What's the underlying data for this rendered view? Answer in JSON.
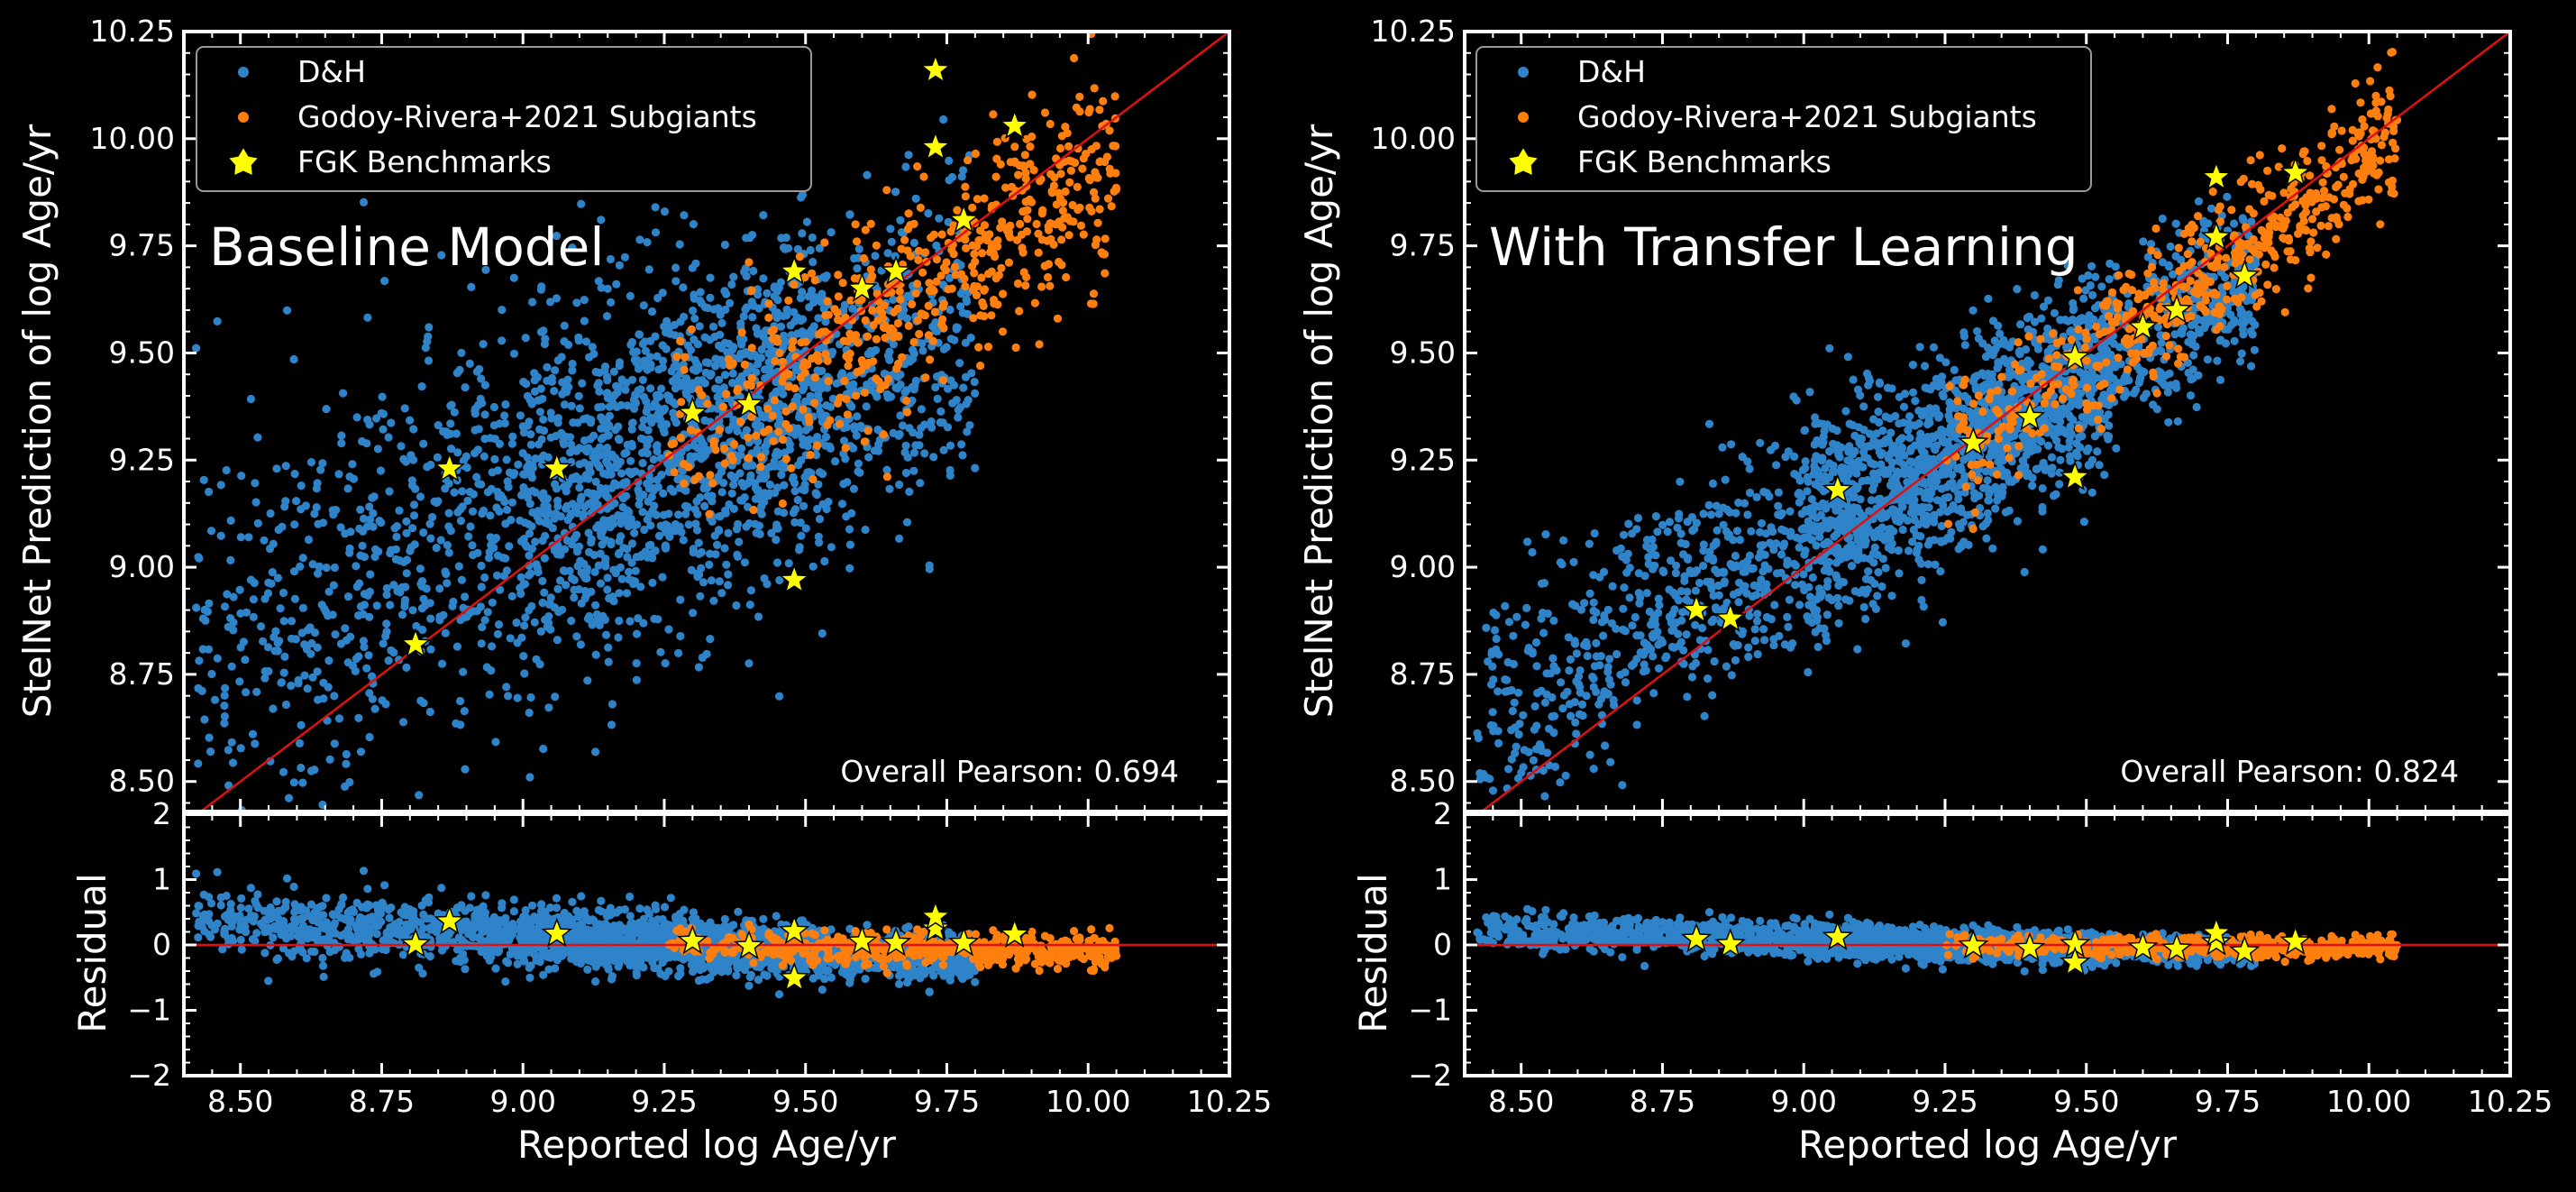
{
  "colors": {
    "background": "#000000",
    "axes": "#ffffff",
    "dh": "#2f83c8",
    "godoy": "#ff7f0e",
    "benchmark_fill": "#ffff00",
    "benchmark_edge": "#000000",
    "one_to_one": "#e01010",
    "legend_edge": "#9a9a9a"
  },
  "chart_data": [
    {
      "type": "scatter",
      "title": "Baseline Model",
      "xlabel": "Reported log Age/yr",
      "ylabel": "StelNet Prediction of log Age/yr",
      "residual_ylabel": "Residual",
      "xlim": [
        8.4,
        10.25
      ],
      "ylim": [
        8.43,
        10.25
      ],
      "residual_ylim": [
        -2,
        2
      ],
      "xticks": [
        "8.50",
        "8.75",
        "9.00",
        "9.25",
        "9.50",
        "9.75",
        "10.00",
        "10.25"
      ],
      "yticks": [
        "8.50",
        "8.75",
        "9.00",
        "9.25",
        "9.50",
        "9.75",
        "10.00",
        "10.25"
      ],
      "residual_yticks": [
        "−2",
        "−1",
        "0",
        "1",
        "2"
      ],
      "annotation": "Overall Pearson: 0.694",
      "legend_placement": "top-left",
      "legend": [
        "D&H",
        "Godoy-Rivera+2021 Subgiants",
        "FGK Benchmarks"
      ],
      "series": [
        {
          "name": "D&H",
          "marker": "circle",
          "approx_points": 2400,
          "x_range": [
            8.4,
            9.8
          ],
          "prediction_scatter_sd": 0.24
        },
        {
          "name": "Godoy-Rivera+2021 Subgiants",
          "marker": "circle",
          "approx_points": 560,
          "x_range": [
            9.25,
            10.05
          ],
          "prediction_scatter_sd": 0.12
        },
        {
          "name": "FGK Benchmarks",
          "marker": "star",
          "points": [
            [
              8.81,
              8.82
            ],
            [
              8.87,
              9.23
            ],
            [
              9.06,
              9.23
            ],
            [
              9.3,
              9.36
            ],
            [
              9.4,
              9.38
            ],
            [
              9.48,
              9.69
            ],
            [
              9.48,
              8.97
            ],
            [
              9.6,
              9.65
            ],
            [
              9.66,
              9.69
            ],
            [
              9.73,
              9.98
            ],
            [
              9.73,
              10.16
            ],
            [
              9.78,
              9.81
            ],
            [
              9.87,
              10.03
            ]
          ]
        }
      ]
    },
    {
      "type": "scatter",
      "title": "With Transfer Learning",
      "xlabel": "Reported log Age/yr",
      "ylabel": "StelNet Prediction of log Age/yr",
      "residual_ylabel": "Residual",
      "xlim": [
        8.4,
        10.25
      ],
      "ylim": [
        8.43,
        10.25
      ],
      "residual_ylim": [
        -2,
        2
      ],
      "xticks": [
        "8.50",
        "8.75",
        "9.00",
        "9.25",
        "9.50",
        "9.75",
        "10.00",
        "10.25"
      ],
      "yticks": [
        "8.50",
        "8.75",
        "9.00",
        "9.25",
        "9.50",
        "9.75",
        "10.00",
        "10.25"
      ],
      "residual_yticks": [
        "−2",
        "−1",
        "0",
        "1",
        "2"
      ],
      "annotation": "Overall Pearson: 0.824",
      "legend_placement": "top-left",
      "legend": [
        "D&H",
        "Godoy-Rivera+2021 Subgiants",
        "FGK Benchmarks"
      ],
      "series": [
        {
          "name": "D&H",
          "marker": "circle",
          "approx_points": 2400,
          "x_range": [
            8.4,
            9.8
          ],
          "prediction_scatter_sd": 0.14
        },
        {
          "name": "Godoy-Rivera+2021 Subgiants",
          "marker": "circle",
          "approx_points": 560,
          "x_range": [
            9.25,
            10.05
          ],
          "prediction_scatter_sd": 0.08
        },
        {
          "name": "FGK Benchmarks",
          "marker": "star",
          "points": [
            [
              8.81,
              8.9
            ],
            [
              8.87,
              8.88
            ],
            [
              9.06,
              9.18
            ],
            [
              9.3,
              9.29
            ],
            [
              9.4,
              9.35
            ],
            [
              9.48,
              9.49
            ],
            [
              9.48,
              9.21
            ],
            [
              9.6,
              9.56
            ],
            [
              9.66,
              9.6
            ],
            [
              9.73,
              9.77
            ],
            [
              9.73,
              9.91
            ],
            [
              9.78,
              9.68
            ],
            [
              9.87,
              9.92
            ]
          ]
        }
      ]
    }
  ]
}
